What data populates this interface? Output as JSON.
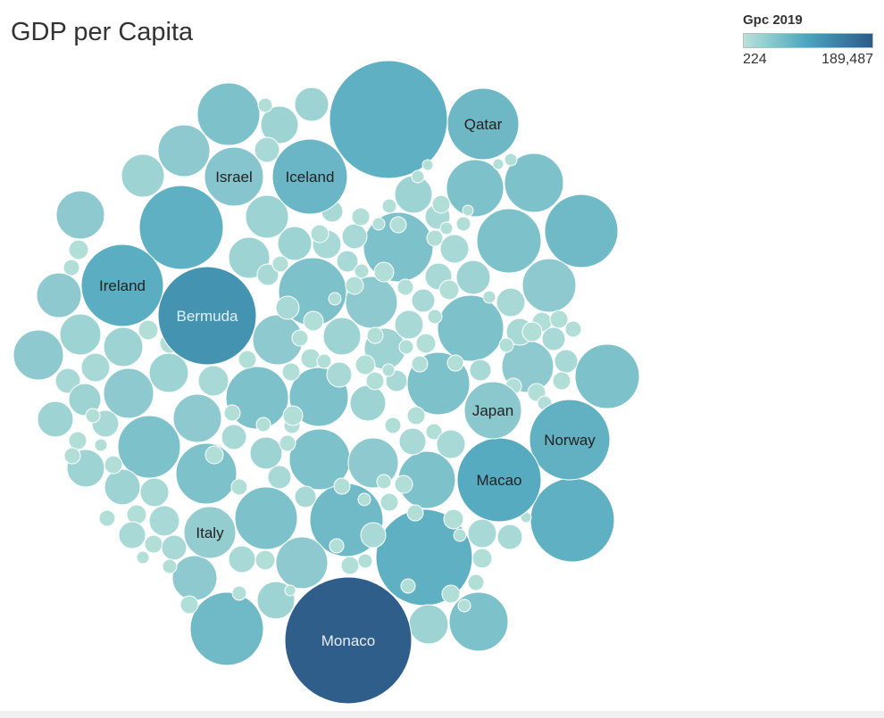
{
  "title": "GDP per Capita",
  "legend": {
    "title": "Gpc 2019",
    "min_label": "224",
    "max_label": "189,487",
    "color_low": "#b9e2da",
    "color_mid": "#4aa4bd",
    "color_high": "#2e5a88"
  },
  "chart_data": {
    "type": "packed-bubble",
    "measure": "Gpc 2019",
    "color_range": [
      224,
      189487
    ],
    "labeled_bubbles": [
      {
        "label": "Monaco",
        "value": 185000
      },
      {
        "label": "Bermuda",
        "value": 117000
      },
      {
        "label": "Ireland",
        "value": 80000
      },
      {
        "label": "Norway",
        "value": 75000
      },
      {
        "label": "Macao",
        "value": 84000
      },
      {
        "label": "Qatar",
        "value": 64000
      },
      {
        "label": "Iceland",
        "value": 67000
      },
      {
        "label": "Israel",
        "value": 44000
      },
      {
        "label": "Japan",
        "value": 40000
      },
      {
        "label": "Italy",
        "value": 33000
      }
    ]
  }
}
